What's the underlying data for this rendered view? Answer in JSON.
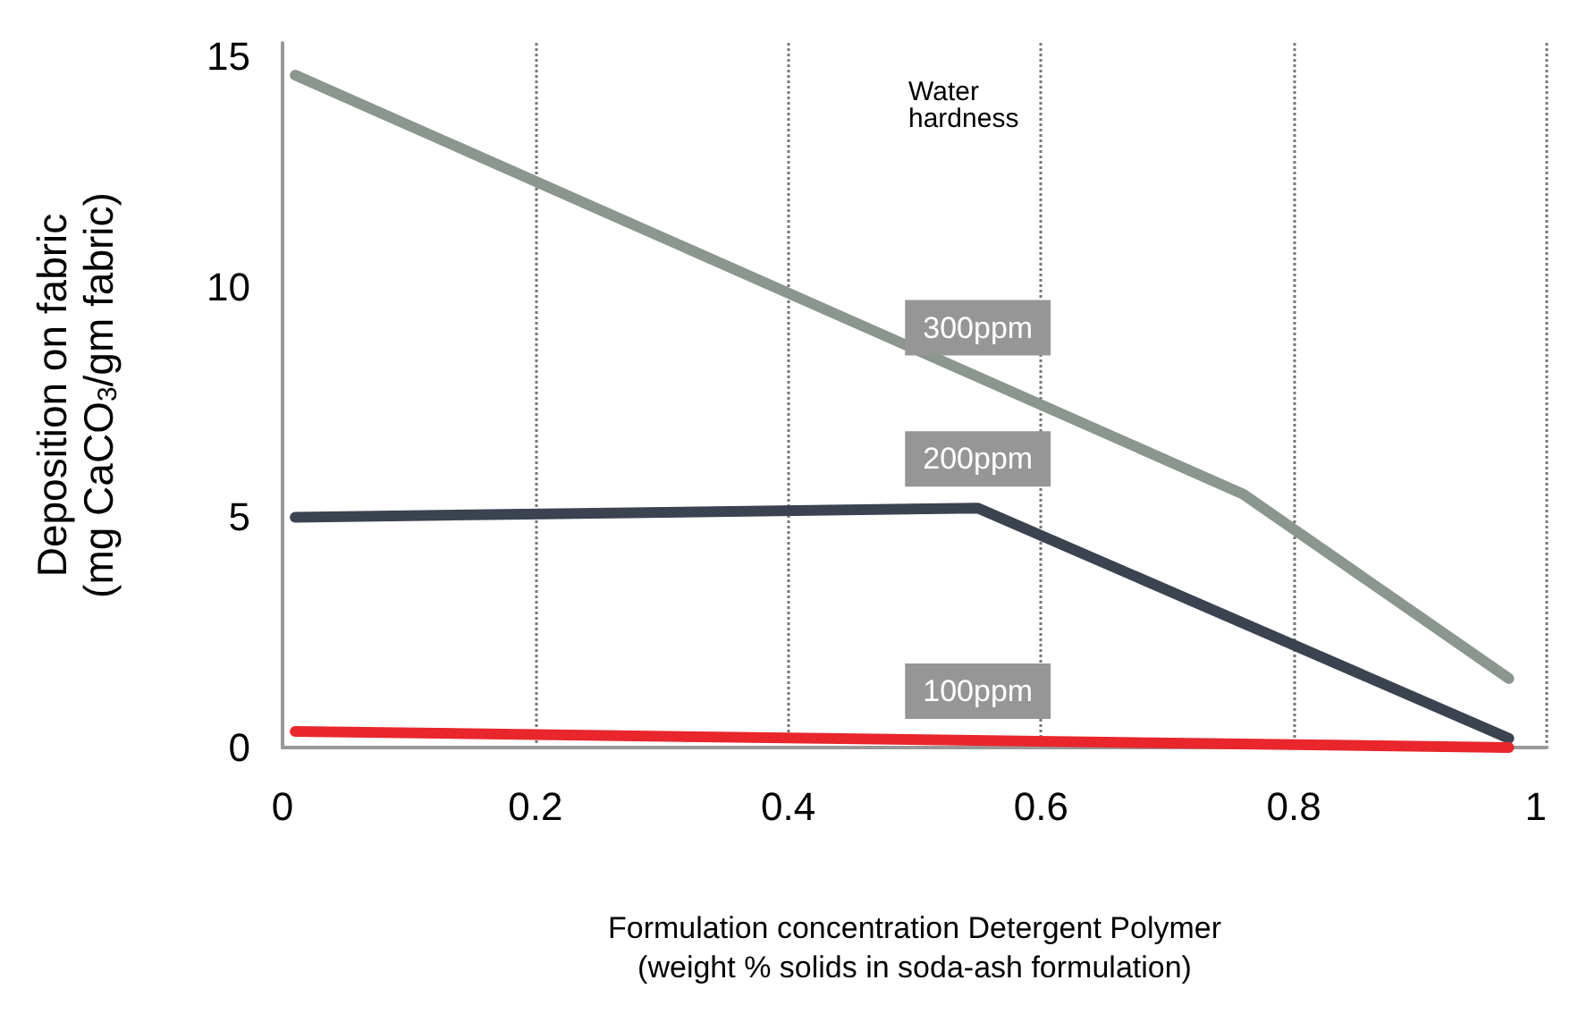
{
  "chart_data": {
    "type": "line",
    "xlabel": "Formulation concentration Detergent Polymer\n(weight % solids in soda-ash formulation)",
    "ylabel": "Deposition on fabric\n(mg CaCO$_{3}$/gm fabric)",
    "legend_title": "Water\nhardness",
    "xlim": [
      0,
      1
    ],
    "ylim": [
      0,
      15.3
    ],
    "xticks": [
      0,
      0.2,
      0.4,
      0.6,
      0.8,
      1
    ],
    "yticks": [
      0,
      5,
      10,
      15
    ],
    "grid": "x",
    "marker": "none",
    "line_style": "solid",
    "legend": false,
    "series": [
      {
        "name": "300ppm",
        "color": "#8a968e",
        "x": [
          0.01,
          0.76,
          0.97
        ],
        "values": [
          14.6,
          5.5,
          1.5
        ]
      },
      {
        "name": "200ppm",
        "color": "#3b4350",
        "x": [
          0.01,
          0.55,
          0.97
        ],
        "values": [
          5.0,
          5.2,
          0.2
        ]
      },
      {
        "name": "100ppm",
        "color": "#e8262c",
        "x": [
          0.01,
          0.97
        ],
        "values": [
          0.35,
          0.0
        ]
      }
    ]
  }
}
